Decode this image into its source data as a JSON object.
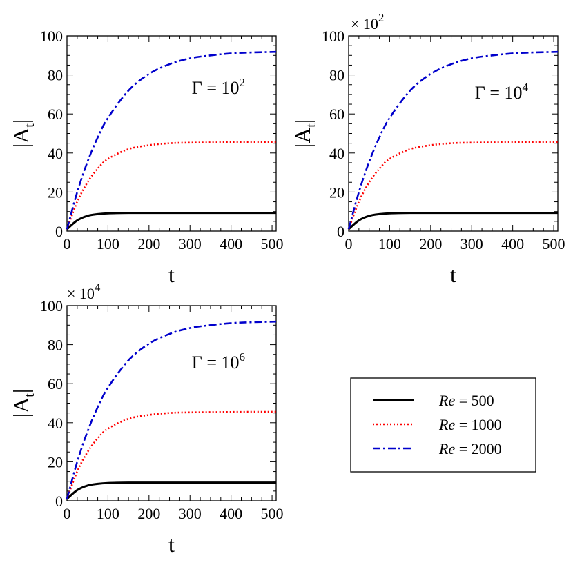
{
  "legend": {
    "entries": [
      {
        "prefix": "Re",
        "suffix": " = 500",
        "color": "#000000",
        "dash": "solid"
      },
      {
        "prefix": "Re",
        "suffix": " = 1000",
        "color": "#ff0000",
        "dash": "dotted"
      },
      {
        "prefix": "Re",
        "suffix": " = 2000",
        "color": "#0000cc",
        "dash": "dashdot"
      }
    ]
  },
  "chart_data": [
    {
      "type": "line",
      "xlabel": "t",
      "ylabel_main": "|A",
      "ylabel_sub": "t",
      "ylabel_end": "|",
      "annotation_base": "Γ = 10",
      "annotation_exp": "2",
      "multiplier_base": "",
      "multiplier_exp": "",
      "xlim": [
        0,
        510
      ],
      "ylim": [
        0,
        100
      ],
      "xticks": [
        0,
        100,
        200,
        300,
        400,
        500
      ],
      "yticks": [
        0,
        20,
        40,
        60,
        80,
        100
      ],
      "series": [
        {
          "name": "Re = 500",
          "color": "#000000",
          "dash": "solid",
          "x": [
            0,
            25,
            50,
            75,
            100,
            150,
            200,
            300,
            400,
            510
          ],
          "y": [
            1,
            5.5,
            7.8,
            8.7,
            9.1,
            9.3,
            9.3,
            9.3,
            9.3,
            9.3
          ]
        },
        {
          "name": "Re = 1000",
          "color": "#ff0000",
          "dash": "dotted",
          "x": [
            0,
            25,
            50,
            75,
            100,
            150,
            200,
            250,
            300,
            400,
            510
          ],
          "y": [
            1,
            15,
            25,
            32,
            37,
            42,
            44,
            45,
            45.3,
            45.5,
            45.6
          ]
        },
        {
          "name": "Re = 2000",
          "color": "#0000cc",
          "dash": "dashdot",
          "x": [
            0,
            25,
            50,
            75,
            100,
            150,
            200,
            250,
            300,
            350,
            400,
            450,
            510
          ],
          "y": [
            1,
            20,
            35.5,
            48,
            58,
            72,
            80.5,
            85.5,
            88.5,
            90,
            91,
            91.5,
            91.8
          ]
        }
      ]
    },
    {
      "type": "line",
      "xlabel": "t",
      "ylabel_main": "|A",
      "ylabel_sub": "t",
      "ylabel_end": "|",
      "annotation_base": "Γ = 10",
      "annotation_exp": "4",
      "multiplier_base": "× 10",
      "multiplier_exp": "2",
      "xlim": [
        0,
        510
      ],
      "ylim": [
        0,
        100
      ],
      "xticks": [
        0,
        100,
        200,
        300,
        400,
        500
      ],
      "yticks": [
        0,
        20,
        40,
        60,
        80,
        100
      ],
      "series": [
        {
          "name": "Re = 500",
          "color": "#000000",
          "dash": "solid",
          "x": [
            0,
            25,
            50,
            75,
            100,
            150,
            200,
            300,
            400,
            510
          ],
          "y": [
            1,
            5.5,
            7.8,
            8.7,
            9.1,
            9.3,
            9.3,
            9.3,
            9.3,
            9.3
          ]
        },
        {
          "name": "Re = 1000",
          "color": "#ff0000",
          "dash": "dotted",
          "x": [
            0,
            25,
            50,
            75,
            100,
            150,
            200,
            250,
            300,
            400,
            510
          ],
          "y": [
            1,
            15,
            25,
            32,
            37,
            42,
            44,
            45,
            45.3,
            45.5,
            45.6
          ]
        },
        {
          "name": "Re = 2000",
          "color": "#0000cc",
          "dash": "dashdot",
          "x": [
            0,
            25,
            50,
            75,
            100,
            150,
            200,
            250,
            300,
            350,
            400,
            450,
            510
          ],
          "y": [
            1,
            20,
            35.5,
            48,
            58,
            72,
            80.5,
            85.5,
            88.5,
            90,
            91,
            91.5,
            91.8
          ]
        }
      ]
    },
    {
      "type": "line",
      "xlabel": "t",
      "ylabel_main": "|A",
      "ylabel_sub": "t",
      "ylabel_end": "|",
      "annotation_base": "Γ = 10",
      "annotation_exp": "6",
      "multiplier_base": "× 10",
      "multiplier_exp": "4",
      "xlim": [
        0,
        510
      ],
      "ylim": [
        0,
        100
      ],
      "xticks": [
        0,
        100,
        200,
        300,
        400,
        500
      ],
      "yticks": [
        0,
        20,
        40,
        60,
        80,
        100
      ],
      "series": [
        {
          "name": "Re = 500",
          "color": "#000000",
          "dash": "solid",
          "x": [
            0,
            25,
            50,
            75,
            100,
            150,
            200,
            300,
            400,
            510
          ],
          "y": [
            1,
            5.5,
            7.8,
            8.7,
            9.1,
            9.3,
            9.3,
            9.3,
            9.3,
            9.3
          ]
        },
        {
          "name": "Re = 1000",
          "color": "#ff0000",
          "dash": "dotted",
          "x": [
            0,
            25,
            50,
            75,
            100,
            150,
            200,
            250,
            300,
            400,
            510
          ],
          "y": [
            1,
            15,
            25,
            32,
            37,
            42,
            44,
            45,
            45.3,
            45.5,
            45.6
          ]
        },
        {
          "name": "Re = 2000",
          "color": "#0000cc",
          "dash": "dashdot",
          "x": [
            0,
            25,
            50,
            75,
            100,
            150,
            200,
            250,
            300,
            350,
            400,
            450,
            510
          ],
          "y": [
            1,
            20,
            35.5,
            48,
            58,
            72,
            80.5,
            85.5,
            88.5,
            90,
            91,
            91.5,
            91.8
          ]
        }
      ]
    }
  ]
}
